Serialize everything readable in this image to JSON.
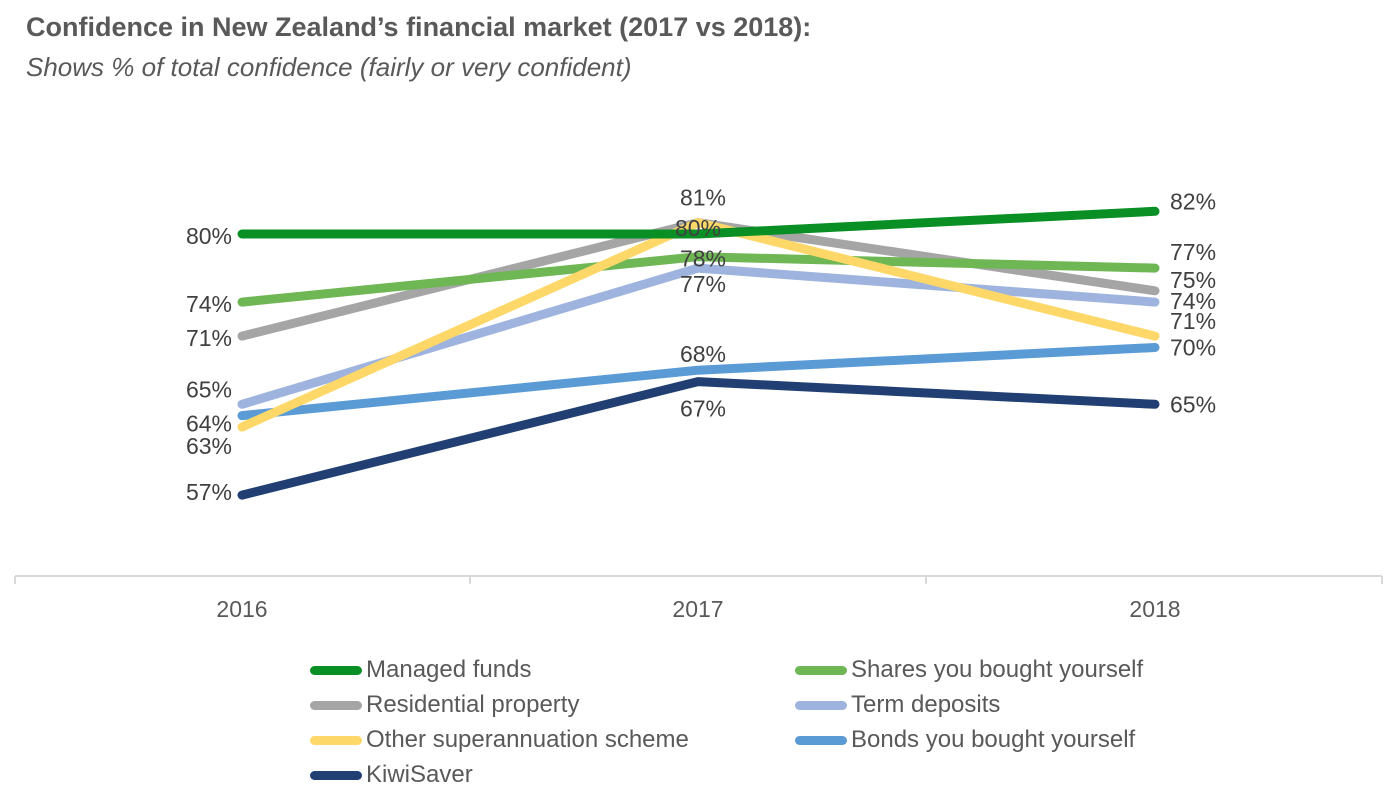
{
  "title": "Confidence in New Zealand’s financial market (2017 vs 2018):",
  "subtitle": "Shows % of total confidence (fairly or very confident)",
  "chart_data": {
    "type": "line",
    "categories": [
      "2016",
      "2017",
      "2018"
    ],
    "ylim": [
      50,
      85
    ],
    "grid": false,
    "legend_position": "bottom",
    "series": [
      {
        "name": "Managed funds",
        "color": "#0a8f25",
        "values": [
          80,
          80,
          82
        ],
        "labels": [
          "80%",
          "80%",
          "82%"
        ]
      },
      {
        "name": "Shares you bought yourself",
        "color": "#6fb654",
        "values": [
          74,
          78,
          77
        ],
        "labels": [
          "74%",
          "78%",
          "77%"
        ]
      },
      {
        "name": "Residential property",
        "color": "#a5a5a5",
        "values": [
          71,
          81,
          75
        ],
        "labels": [
          "71%",
          "81%",
          "75%"
        ]
      },
      {
        "name": "Term deposits",
        "color": "#9eb4de",
        "values": [
          65,
          77,
          74
        ],
        "labels": [
          "65%",
          "77%",
          "74%"
        ]
      },
      {
        "name": "Other superannuation scheme",
        "color": "#fdd868",
        "values": [
          63,
          81,
          71
        ],
        "labels": [
          "63%",
          "",
          "71%"
        ]
      },
      {
        "name": "Bonds you bought yourself",
        "color": "#5b9bd5",
        "values": [
          64,
          68,
          70
        ],
        "labels": [
          "64%",
          "68%",
          "70%"
        ]
      },
      {
        "name": "KiwiSaver",
        "color": "#213f73",
        "values": [
          57,
          67,
          65
        ],
        "labels": [
          "57%",
          "67%",
          "65%"
        ]
      }
    ]
  }
}
